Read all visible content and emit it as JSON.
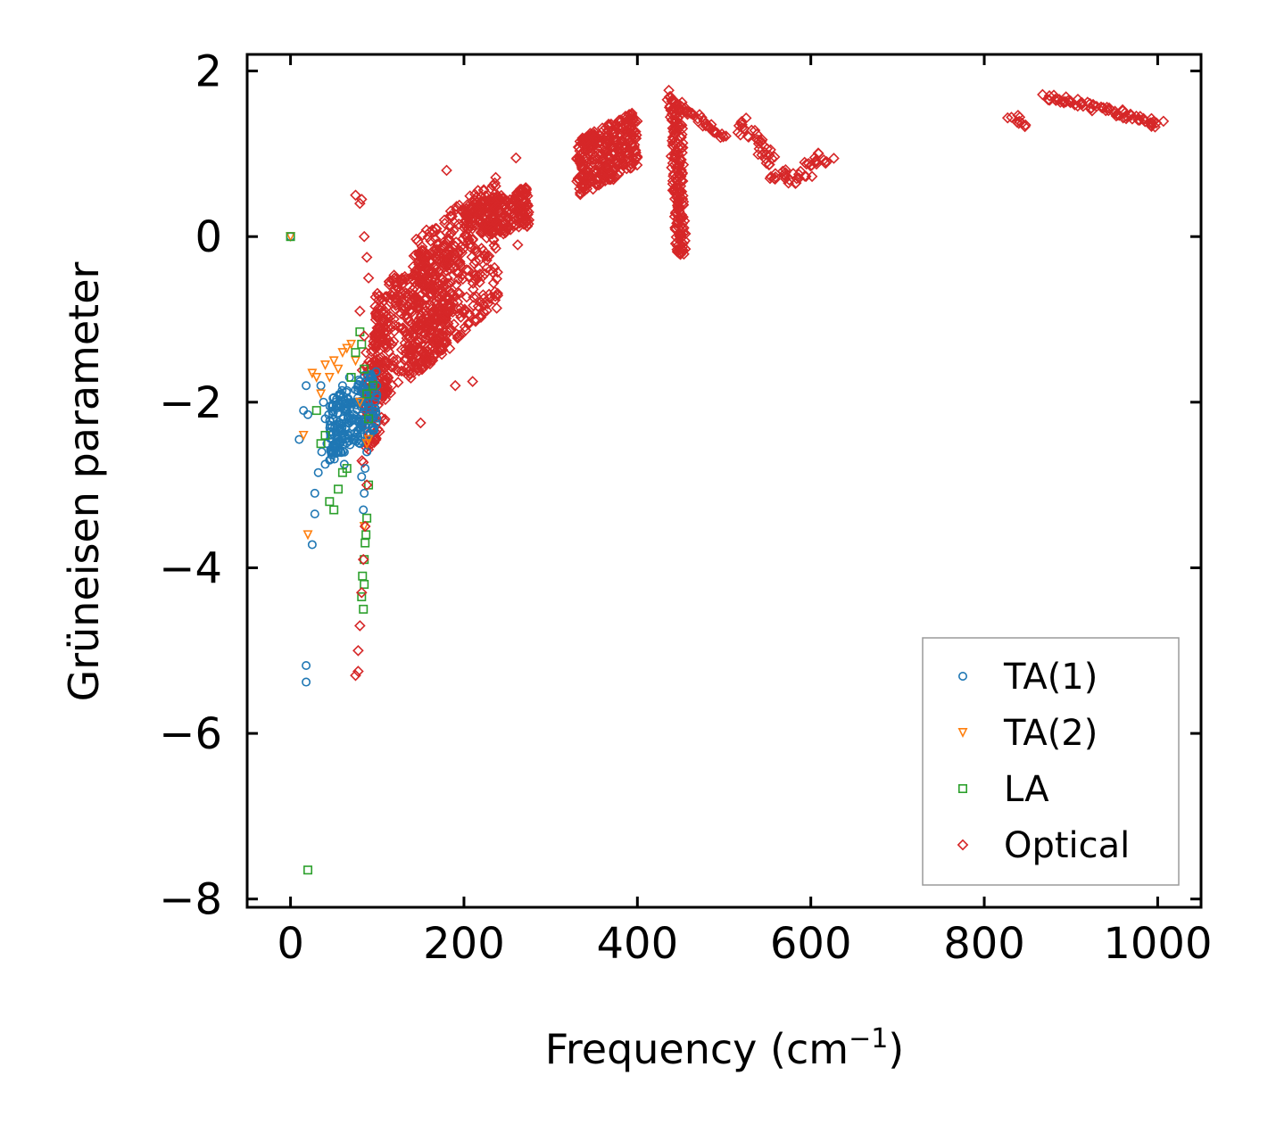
{
  "chart_data": {
    "type": "scatter",
    "title": "",
    "xlabel": "Frequency (cm",
    "xlabel_sup": "−1",
    "xlabel_close": ")",
    "ylabel": "Grüneisen parameter",
    "xlim": [
      -50,
      1050
    ],
    "ylim": [
      -8.1,
      2.2
    ],
    "xticks": [
      0,
      200,
      400,
      600,
      800,
      1000
    ],
    "xtick_labels": [
      "0",
      "200",
      "400",
      "600",
      "800",
      "1000"
    ],
    "yticks": [
      -8,
      -6,
      -4,
      -2,
      0,
      2
    ],
    "ytick_labels": [
      "−8",
      "−6",
      "−4",
      "−2",
      "0",
      "2"
    ],
    "grid": false,
    "legend_position": "bottom-right",
    "series": [
      {
        "name": "TA(1)",
        "marker": "circle",
        "color": "#1f77b4",
        "points": [
          [
            0,
            0
          ],
          [
            18,
            -1.8
          ],
          [
            15,
            -2.1
          ],
          [
            20,
            -2.15
          ],
          [
            10,
            -2.45
          ],
          [
            28,
            -3.1
          ],
          [
            28,
            -3.35
          ],
          [
            25,
            -3.72
          ],
          [
            18,
            -5.18
          ],
          [
            18,
            -5.38
          ],
          [
            35,
            -1.8
          ],
          [
            38,
            -2.0
          ],
          [
            40,
            -2.2
          ],
          [
            42,
            -2.5
          ],
          [
            45,
            -2.7
          ],
          [
            32,
            -2.85
          ],
          [
            48,
            -2.3
          ],
          [
            52,
            -2.0
          ],
          [
            55,
            -2.6
          ],
          [
            58,
            -1.9
          ],
          [
            60,
            -2.4
          ],
          [
            62,
            -2.75
          ],
          [
            65,
            -2.1
          ],
          [
            68,
            -1.7
          ],
          [
            70,
            -2.0
          ],
          [
            72,
            -2.3
          ],
          [
            75,
            -1.85
          ],
          [
            78,
            -2.2
          ],
          [
            80,
            -2.5
          ],
          [
            82,
            -2.9
          ],
          [
            85,
            -3.1
          ],
          [
            88,
            -2.6
          ],
          [
            90,
            -2.2
          ],
          [
            92,
            -1.9
          ],
          [
            95,
            -2.1
          ],
          [
            60,
            -1.8
          ],
          [
            66,
            -2.2
          ],
          [
            74,
            -2.45
          ],
          [
            84,
            -3.3
          ],
          [
            86,
            -2.8
          ],
          [
            50,
            -2.55
          ],
          [
            44,
            -2.15
          ],
          [
            36,
            -2.6
          ],
          [
            40,
            -2.75
          ]
        ]
      },
      {
        "name": "TA(2)",
        "marker": "triangle-down",
        "color": "#ff7f0e",
        "points": [
          [
            0,
            0
          ],
          [
            15,
            -2.4
          ],
          [
            20,
            -3.6
          ],
          [
            25,
            -1.65
          ],
          [
            30,
            -1.7
          ],
          [
            40,
            -1.55
          ],
          [
            50,
            -1.5
          ],
          [
            60,
            -1.4
          ],
          [
            65,
            -1.35
          ],
          [
            70,
            -1.3
          ],
          [
            55,
            -1.6
          ],
          [
            45,
            -1.7
          ],
          [
            80,
            -2.0
          ],
          [
            88,
            -2.5
          ],
          [
            90,
            -2.45
          ],
          [
            35,
            -1.9
          ],
          [
            85,
            -3.5
          ],
          [
            75,
            -1.5
          ]
        ]
      },
      {
        "name": "LA",
        "marker": "square",
        "color": "#2ca02c",
        "points": [
          [
            0,
            0
          ],
          [
            20,
            -7.65
          ],
          [
            30,
            -2.1
          ],
          [
            40,
            -2.4
          ],
          [
            45,
            -3.2
          ],
          [
            50,
            -3.3
          ],
          [
            55,
            -3.05
          ],
          [
            60,
            -2.85
          ],
          [
            65,
            -2.8
          ],
          [
            35,
            -2.5
          ],
          [
            80,
            -1.15
          ],
          [
            82,
            -1.3
          ],
          [
            85,
            -1.6
          ],
          [
            88,
            -1.9
          ],
          [
            90,
            -2.2
          ],
          [
            95,
            -1.8
          ],
          [
            85,
            -3.9
          ],
          [
            85,
            -4.2
          ],
          [
            84,
            -4.5
          ],
          [
            86,
            -3.7
          ],
          [
            88,
            -3.4
          ],
          [
            83,
            -4.1
          ],
          [
            82,
            -4.35
          ],
          [
            87,
            -3.6
          ],
          [
            90,
            -3.0
          ],
          [
            75,
            -1.4
          ],
          [
            70,
            -1.7
          ]
        ]
      },
      {
        "name": "Optical",
        "marker": "diamond",
        "color": "#d62728",
        "points": [
          [
            75,
            0.5
          ],
          [
            80,
            0.4
          ],
          [
            82,
            0.45
          ],
          [
            85,
            0
          ],
          [
            88,
            -0.25
          ],
          [
            90,
            -0.5
          ],
          [
            80,
            -0.9
          ],
          [
            85,
            -1.2
          ],
          [
            75,
            -5.3
          ],
          [
            78,
            -5.0
          ],
          [
            80,
            -4.7
          ],
          [
            82,
            -4.3
          ],
          [
            84,
            -3.9
          ],
          [
            86,
            -3.5
          ],
          [
            88,
            -3.0
          ],
          [
            78,
            -5.25
          ],
          [
            100,
            -1.3
          ],
          [
            120,
            -0.5
          ],
          [
            140,
            -1.5
          ],
          [
            150,
            -2.25
          ],
          [
            160,
            -0.3
          ],
          [
            180,
            0.8
          ],
          [
            190,
            -1.8
          ],
          [
            210,
            -1.75
          ],
          [
            230,
            0.2
          ],
          [
            260,
            0.95
          ],
          [
            262,
            -0.1
          ],
          [
            270,
            0.4
          ]
        ]
      }
    ],
    "clusters": [
      {
        "series": "Optical",
        "x_range": [
          95,
          185
        ],
        "y_range": [
          -2.0,
          0.0
        ],
        "points": 420
      },
      {
        "series": "Optical",
        "x_range": [
          140,
          240
        ],
        "y_range": [
          -1.6,
          0.7
        ],
        "points": 380
      },
      {
        "series": "Optical",
        "x_range": [
          200,
          275
        ],
        "y_range": [
          -0.1,
          0.6
        ],
        "points": 220
      },
      {
        "series": "Optical",
        "x_range": [
          82,
          110
        ],
        "y_range": [
          -2.8,
          -0.9
        ],
        "points": 120
      },
      {
        "series": "Optical",
        "x_range": [
          330,
          400
        ],
        "y_range": [
          0.5,
          1.5
        ],
        "points": 330
      },
      {
        "series": "TA(1)",
        "x_range": [
          45,
          100
        ],
        "y_range": [
          -2.7,
          -1.6
        ],
        "points": 220
      }
    ],
    "bands": [
      {
        "series": "Optical",
        "path": [
          [
            435,
            1.75
          ],
          [
            440,
            1.6
          ],
          [
            445,
            0.5
          ],
          [
            448,
            -0.2
          ],
          [
            452,
            -0.2
          ],
          [
            450,
            0.6
          ],
          [
            447,
            1.6
          ],
          [
            460,
            1.5
          ],
          [
            500,
            1.2
          ]
        ],
        "width": 8
      },
      {
        "series": "Optical",
        "path": [
          [
            515,
            1.4
          ],
          [
            540,
            1.1
          ],
          [
            560,
            0.75
          ],
          [
            580,
            0.7
          ],
          [
            600,
            0.85
          ],
          [
            620,
            1.0
          ]
        ],
        "width": 16
      },
      {
        "series": "Optical",
        "path": [
          [
            830,
            1.45
          ],
          [
            845,
            1.35
          ]
        ],
        "width": 9
      },
      {
        "series": "Optical",
        "path": [
          [
            870,
            1.7
          ],
          [
            910,
            1.6
          ],
          [
            950,
            1.5
          ],
          [
            1005,
            1.35
          ]
        ],
        "width": 9
      }
    ]
  }
}
